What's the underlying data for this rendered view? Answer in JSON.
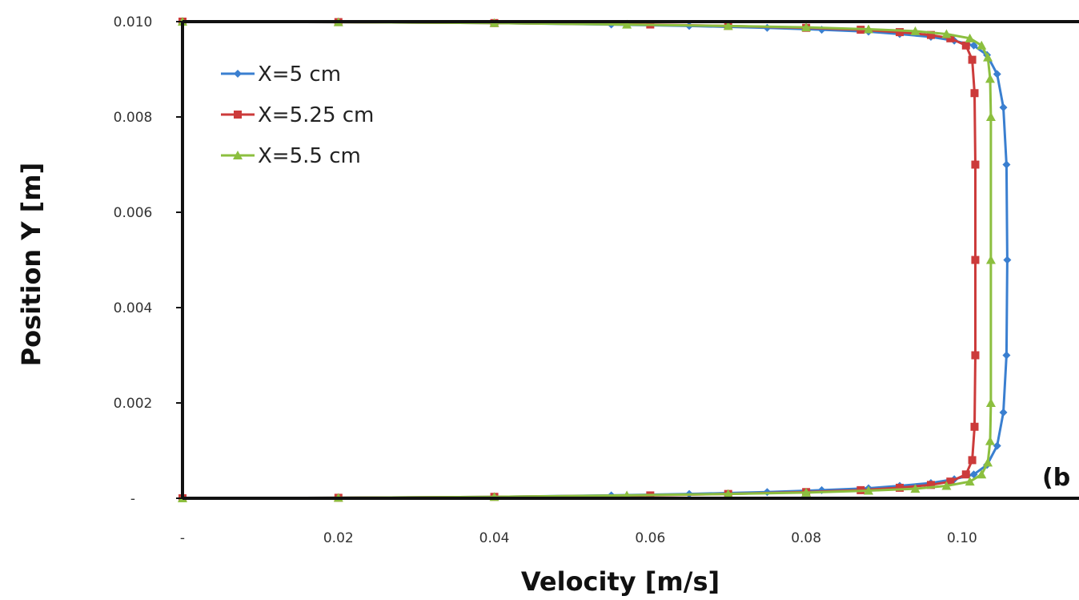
{
  "chart_data": {
    "type": "line",
    "xlabel": "Velocity [m/s]",
    "ylabel": "Position Y [m]",
    "xlim": [
      0,
      0.115
    ],
    "ylim": [
      0,
      0.01
    ],
    "x_ticks": [
      {
        "value": 0,
        "label": "-"
      },
      {
        "value": 0.02,
        "label": "0.02"
      },
      {
        "value": 0.04,
        "label": "0.04"
      },
      {
        "value": 0.06,
        "label": "0.06"
      },
      {
        "value": 0.08,
        "label": "0.08"
      },
      {
        "value": 0.1,
        "label": "0.10"
      }
    ],
    "y_ticks": [
      {
        "value": 0,
        "label": "-"
      },
      {
        "value": 0.002,
        "label": "0.002"
      },
      {
        "value": 0.004,
        "label": "0.004"
      },
      {
        "value": 0.006,
        "label": "0.006"
      },
      {
        "value": 0.008,
        "label": "0.008"
      },
      {
        "value": 0.01,
        "label": "0.010"
      }
    ],
    "grid": false,
    "legend_position": "top-left",
    "panel_label": "(b",
    "series": [
      {
        "name": "X=5 cm",
        "color": "#3a7fd0",
        "marker": "diamond",
        "points": [
          [
            0,
            0
          ],
          [
            0.02,
            1e-05
          ],
          [
            0.04,
            3e-05
          ],
          [
            0.055,
            6e-05
          ],
          [
            0.065,
            9e-05
          ],
          [
            0.075,
            0.00013
          ],
          [
            0.082,
            0.00017
          ],
          [
            0.088,
            0.00021
          ],
          [
            0.092,
            0.00026
          ],
          [
            0.096,
            0.00032
          ],
          [
            0.099,
            0.0004
          ],
          [
            0.1015,
            0.0005
          ],
          [
            0.1032,
            0.0007
          ],
          [
            0.1045,
            0.0011
          ],
          [
            0.1053,
            0.0018
          ],
          [
            0.1057,
            0.003
          ],
          [
            0.1058,
            0.005
          ],
          [
            0.1057,
            0.007
          ],
          [
            0.1053,
            0.0082
          ],
          [
            0.1045,
            0.0089
          ],
          [
            0.1032,
            0.0093
          ],
          [
            0.1015,
            0.0095
          ],
          [
            0.099,
            0.0096
          ],
          [
            0.096,
            0.00968
          ],
          [
            0.092,
            0.00974
          ],
          [
            0.088,
            0.00979
          ],
          [
            0.082,
            0.00983
          ],
          [
            0.075,
            0.00987
          ],
          [
            0.065,
            0.00991
          ],
          [
            0.055,
            0.00994
          ],
          [
            0.04,
            0.00997
          ],
          [
            0.02,
            0.00999
          ],
          [
            0,
            0.01
          ]
        ]
      },
      {
        "name": "X=5.25 cm",
        "color": "#cc3b3b",
        "marker": "square",
        "points": [
          [
            0,
            0
          ],
          [
            0.02,
            1e-05
          ],
          [
            0.04,
            3e-05
          ],
          [
            0.06,
            6e-05
          ],
          [
            0.07,
            9e-05
          ],
          [
            0.08,
            0.00013
          ],
          [
            0.087,
            0.00017
          ],
          [
            0.092,
            0.00022
          ],
          [
            0.096,
            0.00028
          ],
          [
            0.0985,
            0.00035
          ],
          [
            0.1005,
            0.0005
          ],
          [
            0.1013,
            0.0008
          ],
          [
            0.1016,
            0.0015
          ],
          [
            0.1017,
            0.003
          ],
          [
            0.1017,
            0.005
          ],
          [
            0.1017,
            0.007
          ],
          [
            0.1016,
            0.0085
          ],
          [
            0.1013,
            0.0092
          ],
          [
            0.1005,
            0.0095
          ],
          [
            0.0985,
            0.00965
          ],
          [
            0.096,
            0.00972
          ],
          [
            0.092,
            0.00978
          ],
          [
            0.087,
            0.00983
          ],
          [
            0.08,
            0.00987
          ],
          [
            0.07,
            0.00991
          ],
          [
            0.06,
            0.00994
          ],
          [
            0.04,
            0.00997
          ],
          [
            0.02,
            0.00999
          ],
          [
            0,
            0.01
          ]
        ]
      },
      {
        "name": "X=5.5 cm",
        "color": "#8cbf3f",
        "marker": "triangle",
        "points": [
          [
            0,
            0
          ],
          [
            0.02,
            1e-05
          ],
          [
            0.04,
            3e-05
          ],
          [
            0.057,
            6e-05
          ],
          [
            0.07,
            9e-05
          ],
          [
            0.08,
            0.00012
          ],
          [
            0.088,
            0.00016
          ],
          [
            0.094,
            0.0002
          ],
          [
            0.098,
            0.00026
          ],
          [
            0.101,
            0.00035
          ],
          [
            0.1025,
            0.0005
          ],
          [
            0.1033,
            0.00075
          ],
          [
            0.1036,
            0.0012
          ],
          [
            0.1037,
            0.002
          ],
          [
            0.1037,
            0.005
          ],
          [
            0.1037,
            0.008
          ],
          [
            0.1036,
            0.0088
          ],
          [
            0.1033,
            0.00925
          ],
          [
            0.1025,
            0.0095
          ],
          [
            0.101,
            0.00965
          ],
          [
            0.098,
            0.00974
          ],
          [
            0.094,
            0.0098
          ],
          [
            0.088,
            0.00984
          ],
          [
            0.08,
            0.00988
          ],
          [
            0.07,
            0.00991
          ],
          [
            0.057,
            0.00994
          ],
          [
            0.04,
            0.00997
          ],
          [
            0.02,
            0.00999
          ],
          [
            0,
            0.01
          ]
        ]
      }
    ]
  }
}
